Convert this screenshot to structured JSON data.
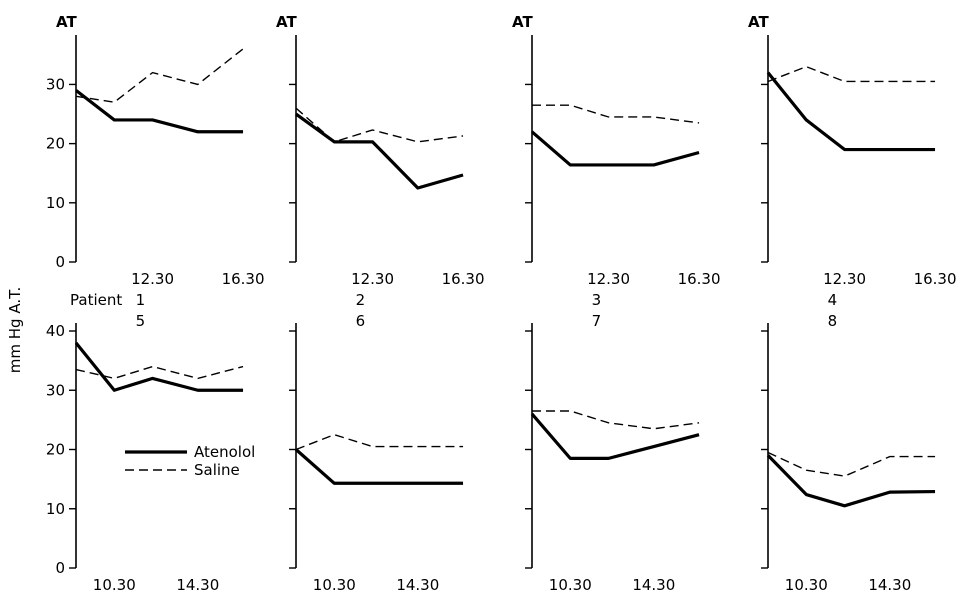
{
  "ylabel": "mm Hg A.T.",
  "patient_word": "Patient",
  "legend": {
    "atenolol": "Atenolol",
    "saline": "Saline"
  },
  "chart_data": [
    {
      "type": "line",
      "panel_label": "AT",
      "patient": "1",
      "x": [
        "",
        "",
        "12.30",
        "",
        "16.30"
      ],
      "xticklabels": [
        "12.30",
        "16.30"
      ],
      "yticks": [
        0,
        10,
        20,
        30
      ],
      "ylim": [
        0,
        37
      ],
      "series": [
        {
          "name": "Atenolol",
          "values": [
            29,
            24,
            24,
            22,
            22
          ]
        },
        {
          "name": "Saline",
          "values": [
            28,
            27,
            32,
            30,
            36
          ]
        }
      ]
    },
    {
      "type": "line",
      "panel_label": "AT",
      "patient": "2",
      "x": [
        "",
        "",
        "12.30",
        "",
        "16.30"
      ],
      "xticklabels": [
        "12.30",
        "16.30"
      ],
      "yticks": [
        0,
        10,
        20,
        30
      ],
      "ylim": [
        0,
        37
      ],
      "series": [
        {
          "name": "Atenolol",
          "values": [
            25,
            20.3,
            20.3,
            12.5,
            14.7
          ]
        },
        {
          "name": "Saline",
          "values": [
            26,
            20.3,
            22.3,
            20.3,
            21.3
          ]
        }
      ]
    },
    {
      "type": "line",
      "panel_label": "AT",
      "patient": "3",
      "x": [
        "",
        "",
        "12.30",
        "",
        "16.30"
      ],
      "xticklabels": [
        "12.30",
        "16.30"
      ],
      "yticks": [
        0,
        10,
        20,
        30
      ],
      "ylim": [
        0,
        37
      ],
      "series": [
        {
          "name": "Atenolol",
          "values": [
            22,
            16.4,
            16.4,
            16.4,
            18.5
          ]
        },
        {
          "name": "Saline",
          "values": [
            26.5,
            26.5,
            24.5,
            24.5,
            23.5
          ]
        }
      ]
    },
    {
      "type": "line",
      "panel_label": "AT",
      "patient": "4",
      "x": [
        "",
        "",
        "12.30",
        "",
        "16.30"
      ],
      "xticklabels": [
        "12.30",
        "16.30"
      ],
      "yticks": [
        0,
        10,
        20,
        30
      ],
      "ylim": [
        0,
        37
      ],
      "series": [
        {
          "name": "Atenolol",
          "values": [
            32,
            24,
            19,
            19,
            19
          ]
        },
        {
          "name": "Saline",
          "values": [
            30.5,
            33,
            30.5,
            30.5,
            30.5
          ]
        }
      ]
    },
    {
      "type": "line",
      "patient": "5",
      "x": [
        "",
        "10.30",
        "",
        "14.30",
        ""
      ],
      "xticklabels": [
        "10.30",
        "14.30"
      ],
      "yticks": [
        0,
        10,
        20,
        30,
        40
      ],
      "ylim": [
        0,
        40
      ],
      "series": [
        {
          "name": "Atenolol",
          "values": [
            38,
            30,
            32,
            30,
            30
          ]
        },
        {
          "name": "Saline",
          "values": [
            33.5,
            32,
            34,
            32,
            34
          ]
        }
      ]
    },
    {
      "type": "line",
      "patient": "6",
      "x": [
        "",
        "10.30",
        "",
        "14.30",
        ""
      ],
      "xticklabels": [
        "10.30",
        "14.30"
      ],
      "yticks": [
        0,
        10,
        20,
        30,
        40
      ],
      "ylim": [
        0,
        40
      ],
      "series": [
        {
          "name": "Atenolol",
          "values": [
            20,
            14.3,
            14.3,
            14.3,
            14.3
          ]
        },
        {
          "name": "Saline",
          "values": [
            20,
            22.5,
            20.5,
            20.5,
            20.5
          ]
        }
      ]
    },
    {
      "type": "line",
      "patient": "7",
      "x": [
        "",
        "10.30",
        "",
        "14.30",
        ""
      ],
      "xticklabels": [
        "10.30",
        "14.30"
      ],
      "yticks": [
        0,
        10,
        20,
        30,
        40
      ],
      "ylim": [
        0,
        40
      ],
      "series": [
        {
          "name": "Atenolol",
          "values": [
            26,
            18.5,
            18.5,
            20.5,
            22.5
          ]
        },
        {
          "name": "Saline",
          "values": [
            26.5,
            26.5,
            24.5,
            23.5,
            24.5
          ]
        }
      ]
    },
    {
      "type": "line",
      "patient": "8",
      "x": [
        "",
        "10.30",
        "",
        "14.30",
        ""
      ],
      "xticklabels": [
        "10.30",
        "14.30"
      ],
      "yticks": [
        0,
        10,
        20,
        30,
        40
      ],
      "ylim": [
        0,
        40
      ],
      "series": [
        {
          "name": "Atenolol",
          "values": [
            19,
            12.4,
            10.5,
            12.8,
            12.9
          ]
        },
        {
          "name": "Saline",
          "values": [
            19.5,
            16.5,
            15.5,
            18.8,
            18.8
          ]
        }
      ]
    }
  ]
}
